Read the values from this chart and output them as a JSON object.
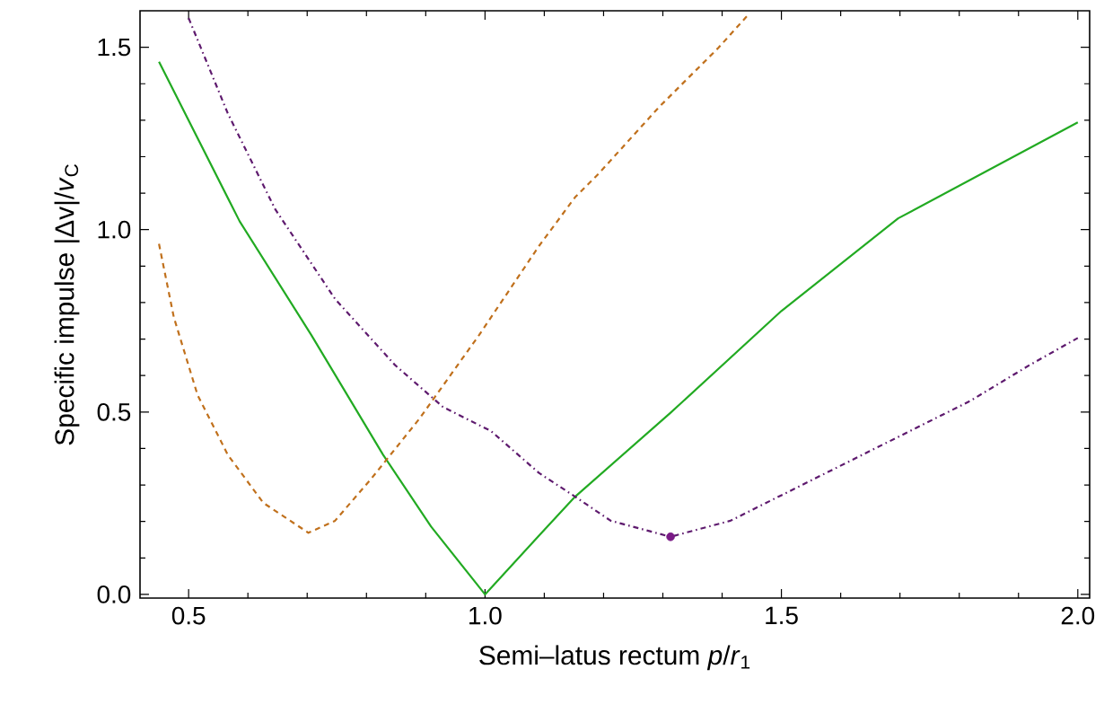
{
  "chart_data": {
    "type": "line",
    "xlabel": "Semi–latus rectum *p*/*r*$_{1}$",
    "ylabel": "Specific impulse |Δv|/*v*$_{C}$",
    "xlim": [
      0.418,
      2.02
    ],
    "ylim": [
      -0.01,
      1.6
    ],
    "xticks": [
      0.5,
      {
        "value": 1,
        "label": "1.0"
      },
      1.5,
      {
        "value": 2,
        "label": "2.0"
      }
    ],
    "yticks": [
      {
        "value": 0,
        "label": "0.0"
      },
      0.5,
      {
        "value": 1,
        "label": "1.0"
      },
      1.5
    ],
    "grid": false,
    "series": [
      {
        "color": "#22aa22",
        "line_style": "solid",
        "x": [
          0.45,
          0.586,
          0.707,
          0.828,
          0.909,
          1.0,
          1.091,
          1.152,
          1.313,
          1.5,
          1.697,
          2.0
        ],
        "values": [
          1.46,
          1.023,
          0.711,
          0.383,
          0.186,
          0.0,
          0.161,
          0.268,
          0.498,
          0.777,
          1.031,
          1.294
        ]
      },
      {
        "color": "#c0701c",
        "line_style": "dashed",
        "x": [
          0.45,
          0.475,
          0.515,
          0.566,
          0.626,
          0.702,
          0.747,
          0.808,
          0.889,
          0.99,
          1.091,
          1.152,
          1.192,
          1.293,
          1.394,
          1.444
        ],
        "values": [
          0.961,
          0.76,
          0.547,
          0.383,
          0.251,
          0.169,
          0.202,
          0.317,
          0.481,
          0.711,
          0.955,
          1.089,
          1.154,
          1.335,
          1.499,
          1.589
        ]
      },
      {
        "color": "#5e1a6e",
        "line_style": "dashdot",
        "x": [
          0.5,
          0.566,
          0.646,
          0.747,
          0.848,
          0.929,
          1.01,
          1.091,
          1.152,
          1.212,
          1.313,
          1.414,
          1.515,
          1.616,
          1.717,
          1.818,
          1.919,
          2.0
        ],
        "values": [
          1.58,
          1.319,
          1.056,
          0.81,
          0.629,
          0.514,
          0.448,
          0.333,
          0.268,
          0.202,
          0.158,
          0.202,
          0.284,
          0.366,
          0.448,
          0.53,
          0.629,
          0.703
        ]
      },
      {
        "type": "scatter",
        "color": "#7a1a86",
        "marker": "circle",
        "x": [
          1.313
        ],
        "values": [
          0.158
        ]
      }
    ]
  }
}
